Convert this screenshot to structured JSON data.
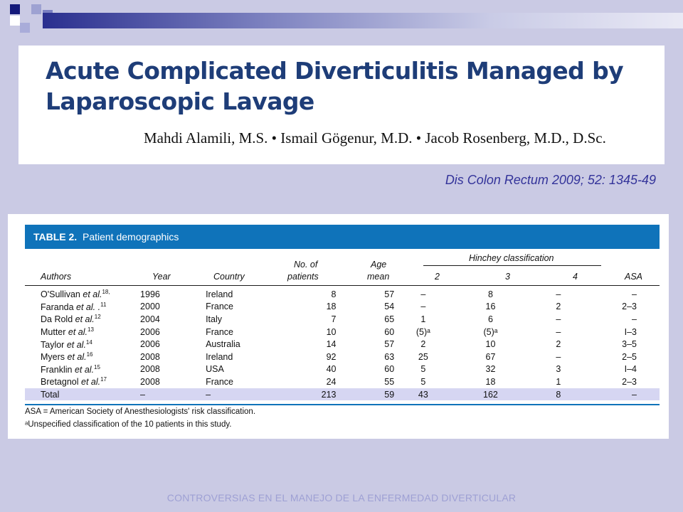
{
  "colors": {
    "background": "#cacae4",
    "title": "#1e3d78",
    "table_header": "#0f73ba",
    "total_row": "#d6d6f2",
    "citation": "#33339a",
    "footer": "#9ea0d4"
  },
  "article": {
    "title": "Acute Complicated Diverticulitis Managed by Laparoscopic Lavage",
    "authors": "Mahdi Alamili, M.S. • Ismail Gögenur, M.D. • Jacob Rosenberg, M.D., D.Sc.",
    "citation": "Dis Colon Rectum 2009; 52: 1345-49"
  },
  "table": {
    "label": "TABLE 2.",
    "title": "Patient demographics",
    "headers": {
      "authors": "Authors",
      "year": "Year",
      "country": "Country",
      "patients_1": "No. of",
      "patients_2": "patients",
      "age_1": "Age",
      "age_2": "mean",
      "hinchey": "Hinchey classification",
      "h2": "2",
      "h3": "3",
      "h4": "4",
      "asa": "ASA"
    },
    "rows": [
      {
        "author": "O'Sullivan",
        "etal": " et al.",
        "ref": "18,",
        "year": "1996",
        "country": "Ireland",
        "n": "8",
        "age": "57",
        "h2": "–",
        "h3": "8",
        "h4": "–",
        "asa": "–"
      },
      {
        "author": "Faranda",
        "etal": " et al. .",
        "ref": "11",
        "year": "2000",
        "country": "France",
        "n": "18",
        "age": "54",
        "h2": "–",
        "h3": "16",
        "h4": "2",
        "asa": "2–3"
      },
      {
        "author": "Da Rold",
        "etal": " et al.",
        "ref": "12",
        "year": "2004",
        "country": "Italy",
        "n": "7",
        "age": "65",
        "h2": "1",
        "h3": "6",
        "h4": "–",
        "asa": "–"
      },
      {
        "author": "Mutter",
        "etal": " et al.",
        "ref": "13",
        "year": "2006",
        "country": "France",
        "n": "10",
        "age": "60",
        "h2": "(5)ᵃ",
        "h3": "(5)ᵃ",
        "h4": "–",
        "asa": "I–3"
      },
      {
        "author": "Taylor",
        "etal": " et al.",
        "ref": "14",
        "year": "2006",
        "country": "Australia",
        "n": "14",
        "age": "57",
        "h2": "2",
        "h3": "10",
        "h4": "2",
        "asa": "3–5"
      },
      {
        "author": "Myers",
        "etal": " et al.",
        "ref": "16",
        "year": "2008",
        "country": "Ireland",
        "n": "92",
        "age": "63",
        "h2": "25",
        "h3": "67",
        "h4": "–",
        "asa": "2–5"
      },
      {
        "author": "Franklin",
        "etal": " et al.",
        "ref": "15",
        "year": "2008",
        "country": "USA",
        "n": "40",
        "age": "60",
        "h2": "5",
        "h3": "32",
        "h4": "3",
        "asa": "I–4"
      },
      {
        "author": "Bretagnol",
        "etal": " et al.",
        "ref": "17",
        "year": "2008",
        "country": "France",
        "n": "24",
        "age": "55",
        "h2": "5",
        "h3": "18",
        "h4": "1",
        "asa": "2–3"
      }
    ],
    "total": {
      "author": "Total",
      "year": "–",
      "country": "–",
      "n": "213",
      "age": "59",
      "h2": "43",
      "h3": "162",
      "h4": "8",
      "asa": "–"
    },
    "footnotes": [
      "ASA = American Society of Anesthesiologists' risk classification.",
      "ᵃUnspecified classification of the 10 patients in this study."
    ]
  },
  "footer": "CONTROVERSIAS EN EL MANEJO DE LA ENFERMEDAD DIVERTICULAR"
}
